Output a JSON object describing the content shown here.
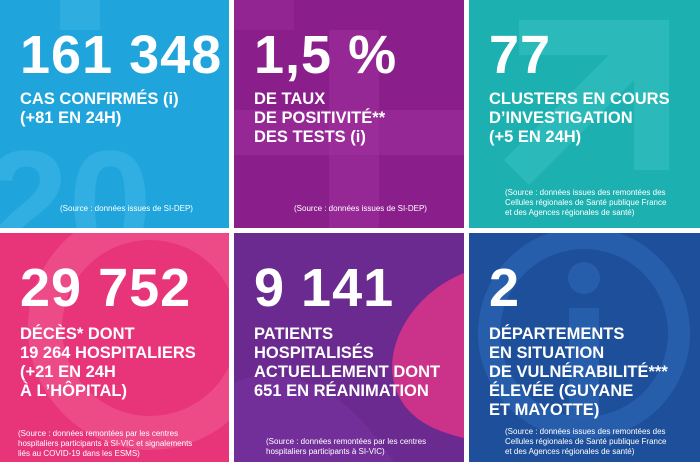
{
  "tiles": [
    {
      "value": "161 348",
      "lines": [
        "CAS CONFIRMÉS (i)",
        "(+81 EN 24H)"
      ],
      "source": [
        "(Source : données issues de SI-DEP)"
      ],
      "color": "#1fa5dc"
    },
    {
      "value": "1,5 %",
      "lines": [
        "DE TAUX",
        "DE POSITIVITÉ**",
        "DES TESTS (i)"
      ],
      "source": [
        "(Source : données issues de SI-DEP)"
      ],
      "color": "#8a1f8c"
    },
    {
      "value": "77",
      "lines": [
        "CLUSTERS EN COURS",
        "D’INVESTIGATION",
        "(+5 EN 24H)"
      ],
      "source": [
        "(Source : données issues des remontées des",
        "Cellules régionales de Santé publique France",
        "et des Agences régionales de santé)"
      ],
      "color": "#1cb0b0"
    },
    {
      "value": "29 752",
      "lines": [
        "DÉCÈS* DONT",
        "19 264 HOSPITALIERS",
        "(+21 EN 24H",
        "À L’HÔPITAL)"
      ],
      "source": [
        "(Source : données remontées par les centres",
        "hospitaliers participants à SI-VIC et signalements",
        "liés au COVID-19 dans les ESMS)"
      ],
      "color": "#e8357a"
    },
    {
      "value": "9 141",
      "lines": [
        "PATIENTS",
        "HOSPITALISÉS",
        "ACTUELLEMENT DONT",
        "651 EN RÉANIMATION"
      ],
      "source": [
        "(Source : données remontées par les centres",
        "hospitaliers participants à SI-VIC)"
      ],
      "color": "#6a2a8f"
    },
    {
      "value": "2",
      "lines": [
        "DÉPARTEMENTS",
        "EN SITUATION",
        "DE VULNÉRABILITÉ***",
        "ÉLEVÉE (GUYANE",
        "ET MAYOTTE)"
      ],
      "source": [
        "(Source : données issues des remontées des",
        "Cellules régionales de Santé publique France",
        "et des Agences régionales de santé)"
      ],
      "color": "#1d4f9a"
    }
  ]
}
